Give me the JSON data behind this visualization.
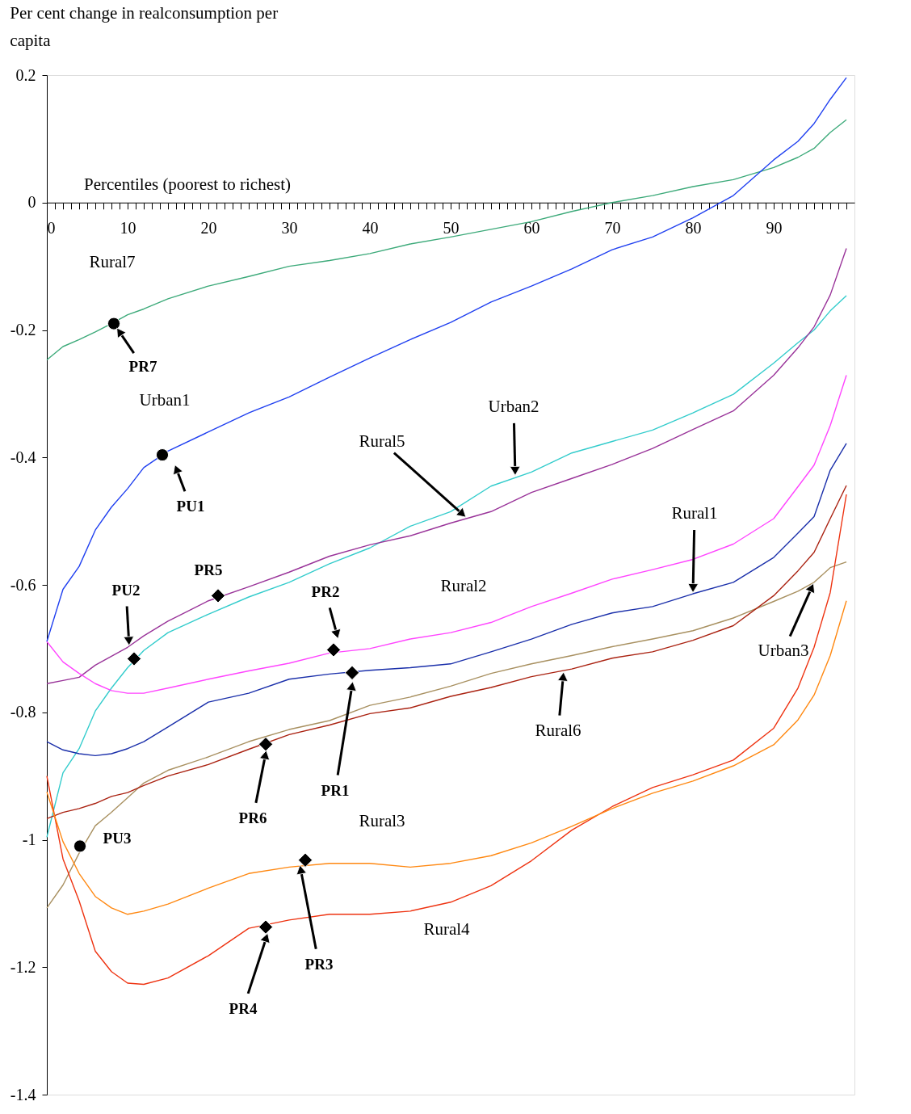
{
  "chart_data": {
    "type": "line",
    "ylabel": "Per cent change in realconsumption per capita",
    "xlabel": "Percentiles (poorest to richest)",
    "x": [
      0,
      2,
      4,
      6,
      8,
      10,
      12,
      15,
      20,
      25,
      30,
      35,
      40,
      45,
      50,
      55,
      60,
      65,
      70,
      75,
      80,
      85,
      90,
      93,
      95,
      97,
      99
    ],
    "xlim": [
      0,
      100
    ],
    "ylim": [
      -1.4,
      0.2
    ],
    "xticks": [
      0,
      {
        "value": 1,
        "label": null
      },
      {
        "value": 2,
        "label": null
      },
      {
        "value": 3,
        "label": null
      },
      {
        "value": 4,
        "label": null
      },
      {
        "value": 5,
        "label": null
      },
      {
        "value": 6,
        "label": null
      },
      {
        "value": 7,
        "label": null
      },
      {
        "value": 8,
        "label": null
      },
      {
        "value": 9,
        "label": null
      },
      10,
      {
        "value": 11,
        "label": null
      },
      {
        "value": 12,
        "label": null
      },
      {
        "value": 13,
        "label": null
      },
      {
        "value": 14,
        "label": null
      },
      {
        "value": 15,
        "label": null
      },
      {
        "value": 16,
        "label": null
      },
      {
        "value": 17,
        "label": null
      },
      {
        "value": 18,
        "label": null
      },
      {
        "value": 19,
        "label": null
      },
      20,
      {
        "value": 21,
        "label": null
      },
      {
        "value": 22,
        "label": null
      },
      {
        "value": 23,
        "label": null
      },
      {
        "value": 24,
        "label": null
      },
      {
        "value": 25,
        "label": null
      },
      {
        "value": 26,
        "label": null
      },
      {
        "value": 27,
        "label": null
      },
      {
        "value": 28,
        "label": null
      },
      {
        "value": 29,
        "label": null
      },
      30,
      {
        "value": 31,
        "label": null
      },
      {
        "value": 32,
        "label": null
      },
      {
        "value": 33,
        "label": null
      },
      {
        "value": 34,
        "label": null
      },
      {
        "value": 35,
        "label": null
      },
      {
        "value": 36,
        "label": null
      },
      {
        "value": 37,
        "label": null
      },
      {
        "value": 38,
        "label": null
      },
      {
        "value": 39,
        "label": null
      },
      40,
      {
        "value": 41,
        "label": null
      },
      {
        "value": 42,
        "label": null
      },
      {
        "value": 43,
        "label": null
      },
      {
        "value": 44,
        "label": null
      },
      {
        "value": 45,
        "label": null
      },
      {
        "value": 46,
        "label": null
      },
      {
        "value": 47,
        "label": null
      },
      {
        "value": 48,
        "label": null
      },
      {
        "value": 49,
        "label": null
      },
      50,
      {
        "value": 51,
        "label": null
      },
      {
        "value": 52,
        "label": null
      },
      {
        "value": 53,
        "label": null
      },
      {
        "value": 54,
        "label": null
      },
      {
        "value": 55,
        "label": null
      },
      {
        "value": 56,
        "label": null
      },
      {
        "value": 57,
        "label": null
      },
      {
        "value": 58,
        "label": null
      },
      {
        "value": 59,
        "label": null
      },
      60,
      {
        "value": 61,
        "label": null
      },
      {
        "value": 62,
        "label": null
      },
      {
        "value": 63,
        "label": null
      },
      {
        "value": 64,
        "label": null
      },
      {
        "value": 65,
        "label": null
      },
      {
        "value": 66,
        "label": null
      },
      {
        "value": 67,
        "label": null
      },
      {
        "value": 68,
        "label": null
      },
      {
        "value": 69,
        "label": null
      },
      70,
      {
        "value": 71,
        "label": null
      },
      {
        "value": 72,
        "label": null
      },
      {
        "value": 73,
        "label": null
      },
      {
        "value": 74,
        "label": null
      },
      {
        "value": 75,
        "label": null
      },
      {
        "value": 76,
        "label": null
      },
      {
        "value": 77,
        "label": null
      },
      {
        "value": 78,
        "label": null
      },
      {
        "value": 79,
        "label": null
      },
      80,
      {
        "value": 81,
        "label": null
      },
      {
        "value": 82,
        "label": null
      },
      {
        "value": 83,
        "label": null
      },
      {
        "value": 84,
        "label": null
      },
      {
        "value": 85,
        "label": null
      },
      {
        "value": 86,
        "label": null
      },
      {
        "value": 87,
        "label": null
      },
      {
        "value": 88,
        "label": null
      },
      {
        "value": 89,
        "label": null
      },
      90,
      {
        "value": 91,
        "label": null
      },
      {
        "value": 92,
        "label": null
      },
      {
        "value": 93,
        "label": null
      },
      {
        "value": 94,
        "label": null
      },
      {
        "value": 95,
        "label": null
      },
      {
        "value": 96,
        "label": null
      },
      {
        "value": 97,
        "label": null
      },
      {
        "value": 98,
        "label": null
      },
      {
        "value": 99,
        "label": null
      }
    ],
    "yticks": [
      -1.4,
      -1.2,
      -1,
      -0.8,
      -0.6,
      -0.4,
      -0.2,
      0,
      0.2
    ],
    "grid": false,
    "line_style": "solid",
    "series": [
      {
        "color": "#3daa7a",
        "values": [
          -0.247,
          -0.226,
          -0.215,
          -0.203,
          -0.19,
          -0.176,
          -0.167,
          -0.151,
          -0.131,
          -0.116,
          -0.1,
          -0.091,
          -0.08,
          -0.065,
          -0.054,
          -0.042,
          -0.03,
          -0.014,
          0.0,
          0.011,
          0.025,
          0.036,
          0.055,
          0.071,
          0.085,
          0.11,
          0.13
        ]
      },
      {
        "color": "#2040f0",
        "values": [
          -0.689,
          -0.607,
          -0.571,
          -0.514,
          -0.478,
          -0.449,
          -0.416,
          -0.39,
          -0.36,
          -0.33,
          -0.305,
          -0.274,
          -0.244,
          -0.215,
          -0.188,
          -0.156,
          -0.131,
          -0.104,
          -0.074,
          -0.054,
          -0.024,
          0.011,
          0.067,
          0.096,
          0.124,
          0.162,
          0.196
        ]
      },
      {
        "color": "#33cccc",
        "values": [
          -0.996,
          -0.895,
          -0.857,
          -0.798,
          -0.762,
          -0.73,
          -0.703,
          -0.675,
          -0.646,
          -0.619,
          -0.596,
          -0.567,
          -0.542,
          -0.508,
          -0.485,
          -0.445,
          -0.423,
          -0.393,
          -0.375,
          -0.357,
          -0.33,
          -0.301,
          -0.252,
          -0.22,
          -0.2,
          -0.17,
          -0.146
        ]
      },
      {
        "color": "#993399",
        "values": [
          -0.755,
          -0.75,
          -0.745,
          -0.726,
          -0.712,
          -0.698,
          -0.68,
          -0.657,
          -0.625,
          -0.603,
          -0.58,
          -0.555,
          -0.537,
          -0.523,
          -0.503,
          -0.485,
          -0.455,
          -0.433,
          -0.411,
          -0.386,
          -0.356,
          -0.327,
          -0.271,
          -0.228,
          -0.195,
          -0.145,
          -0.072
        ]
      },
      {
        "color": "#ff44ff",
        "values": [
          -0.689,
          -0.721,
          -0.739,
          -0.755,
          -0.766,
          -0.77,
          -0.77,
          -0.762,
          -0.748,
          -0.735,
          -0.723,
          -0.707,
          -0.7,
          -0.685,
          -0.675,
          -0.659,
          -0.634,
          -0.613,
          -0.591,
          -0.576,
          -0.56,
          -0.536,
          -0.496,
          -0.446,
          -0.412,
          -0.35,
          -0.271
        ]
      },
      {
        "color": "#1a2faa",
        "values": [
          -0.846,
          -0.859,
          -0.865,
          -0.868,
          -0.865,
          -0.857,
          -0.846,
          -0.823,
          -0.784,
          -0.77,
          -0.748,
          -0.74,
          -0.734,
          -0.73,
          -0.724,
          -0.705,
          -0.685,
          -0.662,
          -0.644,
          -0.634,
          -0.614,
          -0.596,
          -0.557,
          -0.519,
          -0.493,
          -0.42,
          -0.378
        ]
      },
      {
        "color": "#a89060",
        "values": [
          -1.107,
          -1.071,
          -1.021,
          -0.978,
          -0.957,
          -0.934,
          -0.911,
          -0.891,
          -0.87,
          -0.846,
          -0.827,
          -0.813,
          -0.789,
          -0.776,
          -0.759,
          -0.739,
          -0.724,
          -0.711,
          -0.697,
          -0.685,
          -0.672,
          -0.652,
          -0.626,
          -0.61,
          -0.596,
          -0.573,
          -0.564
        ]
      },
      {
        "color": "#aa2211",
        "values": [
          -0.967,
          -0.957,
          -0.951,
          -0.943,
          -0.932,
          -0.926,
          -0.915,
          -0.9,
          -0.882,
          -0.858,
          -0.835,
          -0.82,
          -0.802,
          -0.793,
          -0.775,
          -0.761,
          -0.744,
          -0.732,
          -0.715,
          -0.705,
          -0.687,
          -0.664,
          -0.617,
          -0.578,
          -0.549,
          -0.496,
          -0.444
        ]
      },
      {
        "color": "#ee3311",
        "values": [
          -0.9,
          -1.03,
          -1.096,
          -1.175,
          -1.207,
          -1.225,
          -1.227,
          -1.217,
          -1.182,
          -1.139,
          -1.126,
          -1.117,
          -1.117,
          -1.112,
          -1.098,
          -1.072,
          -1.033,
          -0.985,
          -0.948,
          -0.918,
          -0.898,
          -0.875,
          -0.825,
          -0.762,
          -0.698,
          -0.612,
          -0.458
        ]
      },
      {
        "color": "#ff8811",
        "values": [
          -0.925,
          -1.003,
          -1.053,
          -1.089,
          -1.107,
          -1.117,
          -1.112,
          -1.101,
          -1.076,
          -1.053,
          -1.043,
          -1.037,
          -1.037,
          -1.043,
          -1.037,
          -1.025,
          -1.005,
          -0.979,
          -0.951,
          -0.927,
          -0.908,
          -0.884,
          -0.851,
          -0.812,
          -0.773,
          -0.711,
          -0.625
        ]
      },
      {
        "type": "scatter",
        "marker": "circle",
        "color": "#000000",
        "x": [
          8.3,
          14.3,
          4.1
        ],
        "values": [
          -0.19,
          -0.396,
          -1.01
        ]
      },
      {
        "type": "scatter",
        "marker": "diamond",
        "color": "#000000",
        "x": [
          10.8,
          21.2,
          35.5,
          37.8,
          27.1,
          32.0,
          27.1
        ],
        "values": [
          -0.716,
          -0.617,
          -0.702,
          -0.738,
          -0.85,
          -1.032,
          -1.137
        ]
      }
    ],
    "annotations": [
      "Rural7",
      {
        "text": "Urban1",
        "x": 15,
        "y": -0.39
      },
      {
        "text": "Urban2",
        "x": 58,
        "y": -0.43
      },
      {
        "text": "Rural5",
        "x": 52,
        "y": -0.495
      },
      {
        "text": "Rural1",
        "x": 80,
        "y": -0.614
      },
      {
        "text": "Rural2",
        "x": 50,
        "y": -0.675
      },
      {
        "text": "Rural6",
        "x": 64,
        "y": -0.735
      },
      {
        "text": "Urban3",
        "x": 95,
        "y": -0.596
      },
      {
        "text": "Rural3",
        "x": 40,
        "y": -1.037
      },
      {
        "text": "Rural4",
        "x": 50,
        "y": -1.098
      },
      {
        "text": "PR7",
        "x": 8.3,
        "y": -0.19
      },
      "PU1",
      {
        "text": "PU2",
        "x": 10.2,
        "y": -0.697
      },
      {
        "text": "PR5",
        "x": 21.2,
        "y": -0.617
      },
      "PR2",
      {
        "text": "PR1",
        "x": 37.9,
        "y": -0.75
      },
      {
        "text": "PR6",
        "x": 27.2,
        "y": -0.858
      },
      {
        "text": "PU3",
        "x": 4.1,
        "y": -1.01
      },
      {
        "text": "PR3",
        "x": 31.3,
        "y": -1.038
      },
      {
        "text": "PR4",
        "x": 27.4,
        "y": -1.145
      }
    ]
  }
}
